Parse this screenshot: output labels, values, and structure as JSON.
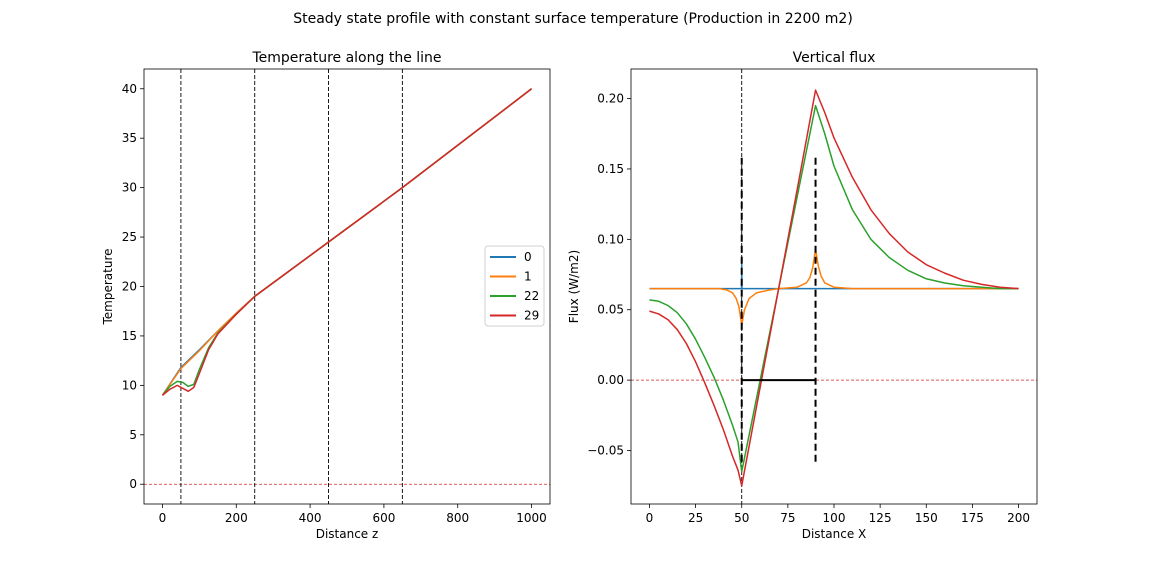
{
  "figure": {
    "suptitle": "Steady state profile with constant surface temperature (Production in 2200 m2)"
  },
  "chart_data": [
    {
      "type": "line",
      "title": "Temperature along the line",
      "xlabel": "Distance z",
      "ylabel": "Temperature",
      "xlim": [
        -50,
        1050
      ],
      "ylim": [
        -2,
        42
      ],
      "xticks": [
        0,
        200,
        400,
        600,
        800,
        1000
      ],
      "yticks": [
        0,
        5,
        10,
        15,
        20,
        25,
        30,
        35,
        40
      ],
      "grid": false,
      "legend_position": "center-right",
      "vlines": [
        50,
        250,
        450,
        650
      ],
      "hline": 0,
      "series": [
        {
          "name": "0",
          "color": "#1f77b4",
          "x": [
            0,
            50,
            100,
            150,
            200,
            250,
            450,
            650,
            1000
          ],
          "y": [
            9,
            11.8,
            13.6,
            15.5,
            17.3,
            19.0,
            24.5,
            30.0,
            40.0
          ]
        },
        {
          "name": "1",
          "color": "#ff7f0e",
          "x": [
            0,
            50,
            100,
            150,
            200,
            250,
            450,
            650,
            1000
          ],
          "y": [
            9,
            11.7,
            13.5,
            15.5,
            17.3,
            19.0,
            24.5,
            30.0,
            40.0
          ]
        },
        {
          "name": "22",
          "color": "#2ca02c",
          "x": [
            0,
            20,
            40,
            55,
            70,
            85,
            100,
            125,
            150,
            200,
            250,
            450,
            650,
            1000
          ],
          "y": [
            9,
            9.9,
            10.4,
            10.3,
            9.9,
            10.1,
            11.6,
            13.8,
            15.3,
            17.2,
            19.0,
            24.5,
            30.0,
            40.0
          ]
        },
        {
          "name": "29",
          "color": "#d62728",
          "x": [
            0,
            20,
            40,
            55,
            70,
            85,
            100,
            125,
            150,
            200,
            250,
            450,
            650,
            1000
          ],
          "y": [
            9,
            9.6,
            10.0,
            9.7,
            9.4,
            9.8,
            11.2,
            13.6,
            15.2,
            17.2,
            19.0,
            24.5,
            30.0,
            40.0
          ]
        }
      ]
    },
    {
      "type": "line",
      "title": "Vertical flux",
      "xlabel": "Distance X",
      "ylabel": "Flux (W/m2)",
      "xlim": [
        -10,
        210
      ],
      "ylim": [
        -0.088,
        0.221
      ],
      "xticks": [
        0,
        25,
        50,
        75,
        100,
        125,
        150,
        175,
        200
      ],
      "yticks": [
        -0.05,
        0.0,
        0.05,
        0.1,
        0.15,
        0.2
      ],
      "grid": false,
      "vlines": [
        50
      ],
      "hline": 0,
      "annotations": {
        "production_zone": {
          "x_start": 50,
          "x_end": 90,
          "y_low": -0.058,
          "y_high": 0.158,
          "y_bar": 0
        }
      },
      "series": [
        {
          "name": "0",
          "color": "#1f77b4",
          "x": [
            0,
            49.9,
            50,
            50.1,
            200
          ],
          "y": [
            0.065,
            0.065,
            0.082,
            0.065,
            0.065
          ]
        },
        {
          "name": "1",
          "color": "#ff7f0e",
          "x": [
            0,
            25,
            38,
            42,
            45,
            47,
            48.5,
            50,
            51.5,
            54,
            58,
            65,
            70,
            80,
            85,
            87,
            88.5,
            90,
            91.5,
            93,
            95,
            100,
            110,
            200
          ],
          "y": [
            0.065,
            0.065,
            0.065,
            0.064,
            0.062,
            0.058,
            0.052,
            0.039,
            0.05,
            0.058,
            0.062,
            0.064,
            0.065,
            0.066,
            0.069,
            0.073,
            0.08,
            0.093,
            0.081,
            0.074,
            0.069,
            0.066,
            0.065,
            0.065
          ]
        },
        {
          "name": "22",
          "color": "#2ca02c",
          "x": [
            0,
            5,
            10,
            15,
            20,
            25,
            30,
            35,
            40,
            45,
            48,
            50,
            60,
            70,
            80,
            90,
            95,
            100,
            110,
            120,
            130,
            140,
            150,
            160,
            170,
            180,
            190,
            200
          ],
          "y": [
            0.057,
            0.056,
            0.053,
            0.048,
            0.04,
            0.029,
            0.016,
            0.002,
            -0.014,
            -0.032,
            -0.044,
            -0.065,
            0.0,
            0.065,
            0.13,
            0.195,
            0.175,
            0.152,
            0.121,
            0.1,
            0.087,
            0.078,
            0.072,
            0.069,
            0.067,
            0.066,
            0.065,
            0.065
          ]
        },
        {
          "name": "29",
          "color": "#d62728",
          "x": [
            0,
            5,
            10,
            15,
            20,
            25,
            30,
            35,
            40,
            45,
            48,
            50,
            60,
            70,
            80,
            90,
            95,
            100,
            110,
            120,
            130,
            140,
            150,
            160,
            170,
            180,
            190,
            200
          ],
          "y": [
            0.049,
            0.047,
            0.043,
            0.036,
            0.026,
            0.013,
            -0.002,
            -0.018,
            -0.035,
            -0.054,
            -0.064,
            -0.075,
            -0.005,
            0.065,
            0.135,
            0.206,
            0.19,
            0.172,
            0.144,
            0.121,
            0.104,
            0.091,
            0.082,
            0.076,
            0.071,
            0.068,
            0.066,
            0.065
          ]
        }
      ]
    }
  ]
}
